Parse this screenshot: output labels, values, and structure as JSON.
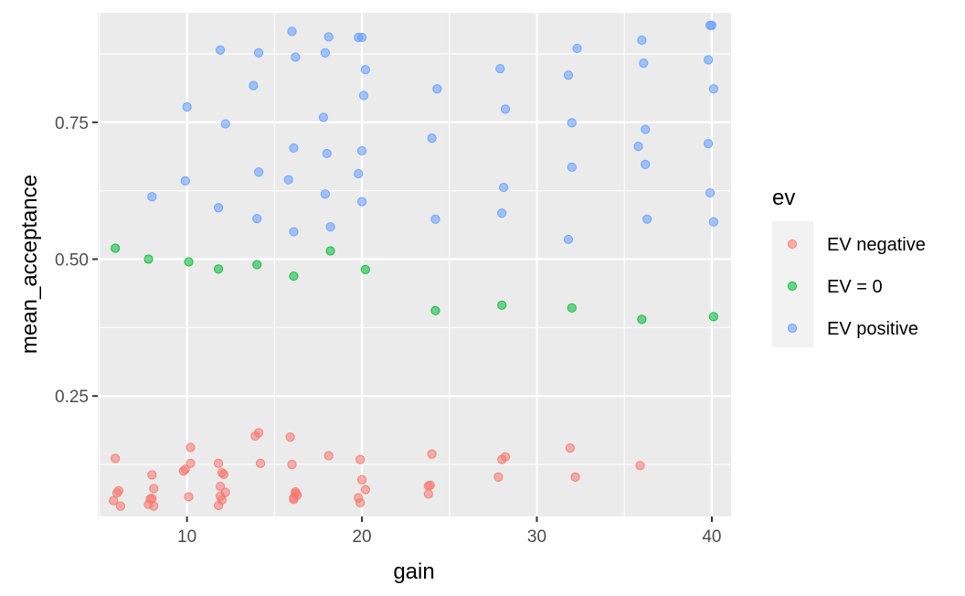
{
  "chart_data": {
    "type": "scatter",
    "xlabel": "gain",
    "ylabel": "mean_acceptance",
    "xlim": [
      4.9,
      41.1
    ],
    "ylim": [
      0.03,
      0.95
    ],
    "x_ticks": [
      10,
      20,
      30,
      40
    ],
    "x_tick_labels": [
      "10",
      "20",
      "30",
      "40"
    ],
    "y_ticks": [
      0.25,
      0.5,
      0.75
    ],
    "y_tick_labels": [
      "0.25",
      "0.50",
      "0.75"
    ],
    "grid": true,
    "legend": {
      "title": "ev",
      "position": "right",
      "entries": [
        "EV negative",
        "EV = 0",
        "EV positive"
      ]
    },
    "colors": {
      "EV negative": "#F8766D",
      "EV = 0": "#00BA38",
      "EV positive": "#619CFF"
    },
    "series": [
      {
        "name": "EV negative",
        "points": [
          [
            5.8,
            0.059
          ],
          [
            5.9,
            0.136
          ],
          [
            6.0,
            0.073
          ],
          [
            6.1,
            0.077
          ],
          [
            6.2,
            0.049
          ],
          [
            7.8,
            0.052
          ],
          [
            7.9,
            0.062
          ],
          [
            8.0,
            0.106
          ],
          [
            8.1,
            0.081
          ],
          [
            8.1,
            0.049
          ],
          [
            8.0,
            0.063
          ],
          [
            9.8,
            0.113
          ],
          [
            9.9,
            0.116
          ],
          [
            10.1,
            0.066
          ],
          [
            10.2,
            0.127
          ],
          [
            10.2,
            0.156
          ],
          [
            11.8,
            0.127
          ],
          [
            11.8,
            0.05
          ],
          [
            11.9,
            0.067
          ],
          [
            11.9,
            0.085
          ],
          [
            12.0,
            0.06
          ],
          [
            12.0,
            0.11
          ],
          [
            12.1,
            0.107
          ],
          [
            12.2,
            0.074
          ],
          [
            13.9,
            0.177
          ],
          [
            14.1,
            0.183
          ],
          [
            14.2,
            0.127
          ],
          [
            15.9,
            0.175
          ],
          [
            16.0,
            0.125
          ],
          [
            16.1,
            0.064
          ],
          [
            16.2,
            0.072
          ],
          [
            16.1,
            0.061
          ],
          [
            16.3,
            0.069
          ],
          [
            16.2,
            0.075
          ],
          [
            18.1,
            0.141
          ],
          [
            19.8,
            0.064
          ],
          [
            19.9,
            0.055
          ],
          [
            19.9,
            0.134
          ],
          [
            20.0,
            0.097
          ],
          [
            20.2,
            0.079
          ],
          [
            23.8,
            0.086
          ],
          [
            23.8,
            0.071
          ],
          [
            24.0,
            0.144
          ],
          [
            23.9,
            0.087
          ],
          [
            27.8,
            0.102
          ],
          [
            28.0,
            0.134
          ],
          [
            28.2,
            0.139
          ],
          [
            31.9,
            0.155
          ],
          [
            32.2,
            0.102
          ],
          [
            35.9,
            0.123
          ]
        ]
      },
      {
        "name": "EV = 0",
        "points": [
          [
            5.9,
            0.52
          ],
          [
            7.8,
            0.5
          ],
          [
            10.1,
            0.495
          ],
          [
            11.8,
            0.482
          ],
          [
            14.0,
            0.49
          ],
          [
            16.1,
            0.469
          ],
          [
            18.2,
            0.515
          ],
          [
            20.2,
            0.481
          ],
          [
            24.2,
            0.406
          ],
          [
            28.0,
            0.416
          ],
          [
            32.0,
            0.411
          ],
          [
            36.0,
            0.39
          ],
          [
            40.1,
            0.395
          ]
        ]
      },
      {
        "name": "EV positive",
        "points": [
          [
            8.0,
            0.614
          ],
          [
            9.9,
            0.643
          ],
          [
            10.0,
            0.778
          ],
          [
            11.8,
            0.594
          ],
          [
            11.9,
            0.882
          ],
          [
            12.2,
            0.747
          ],
          [
            13.8,
            0.817
          ],
          [
            14.0,
            0.574
          ],
          [
            14.1,
            0.877
          ],
          [
            14.1,
            0.659
          ],
          [
            15.8,
            0.645
          ],
          [
            16.0,
            0.916
          ],
          [
            16.1,
            0.703
          ],
          [
            16.1,
            0.55
          ],
          [
            16.2,
            0.869
          ],
          [
            17.8,
            0.759
          ],
          [
            17.9,
            0.877
          ],
          [
            17.9,
            0.619
          ],
          [
            18.0,
            0.693
          ],
          [
            18.1,
            0.906
          ],
          [
            18.2,
            0.559
          ],
          [
            19.8,
            0.905
          ],
          [
            19.8,
            0.656
          ],
          [
            20.0,
            0.905
          ],
          [
            20.0,
            0.605
          ],
          [
            20.0,
            0.698
          ],
          [
            20.1,
            0.799
          ],
          [
            20.2,
            0.846
          ],
          [
            24.0,
            0.721
          ],
          [
            24.2,
            0.573
          ],
          [
            24.3,
            0.811
          ],
          [
            27.9,
            0.848
          ],
          [
            28.0,
            0.584
          ],
          [
            28.1,
            0.631
          ],
          [
            28.2,
            0.774
          ],
          [
            31.8,
            0.836
          ],
          [
            31.8,
            0.536
          ],
          [
            32.0,
            0.749
          ],
          [
            32.0,
            0.668
          ],
          [
            32.3,
            0.885
          ],
          [
            35.8,
            0.706
          ],
          [
            36.0,
            0.9
          ],
          [
            36.1,
            0.858
          ],
          [
            36.2,
            0.737
          ],
          [
            36.2,
            0.673
          ],
          [
            36.3,
            0.573
          ],
          [
            39.8,
            0.864
          ],
          [
            39.8,
            0.711
          ],
          [
            39.9,
            0.621
          ],
          [
            39.9,
            0.927
          ],
          [
            40.0,
            0.927
          ],
          [
            40.1,
            0.811
          ],
          [
            40.1,
            0.568
          ]
        ]
      }
    ]
  }
}
